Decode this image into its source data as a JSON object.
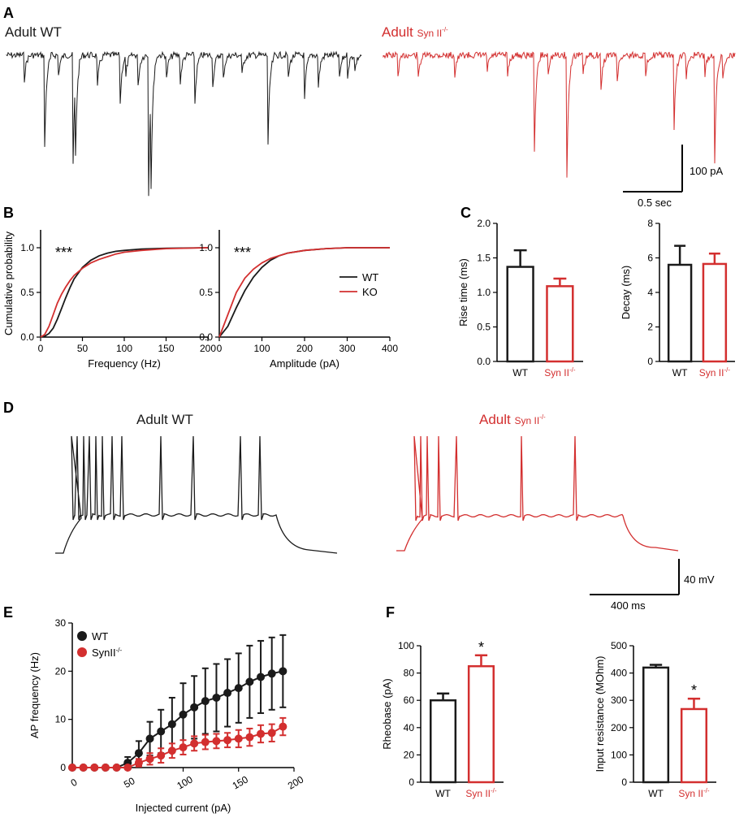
{
  "colors": {
    "wt": "#1a1a1a",
    "ko": "#d32f2f",
    "axis": "#000000"
  },
  "panels": {
    "A": "A",
    "B": "B",
    "C": "C",
    "D": "D",
    "E": "E",
    "F": "F"
  },
  "traces": {
    "wt_label": "Adult WT",
    "ko_label_main": "Adult",
    "ko_label_sub": "Syn II",
    "ko_label_sup": "-/-",
    "scale_a_current": "100 pA",
    "scale_a_time": "0.5 sec",
    "scale_d_voltage": "40 mV",
    "scale_d_time": "400 ms"
  },
  "chart_data": [
    {
      "id": "B1",
      "type": "line",
      "title": "",
      "xlabel": "Frequency (Hz)",
      "ylabel": "Cumulative probability",
      "xlim": [
        0,
        200
      ],
      "ylim": [
        0,
        1.2
      ],
      "xticks": [
        0,
        50,
        100,
        150,
        200
      ],
      "yticks": [
        0.0,
        0.5,
        1.0
      ],
      "annotation": "***",
      "series": [
        {
          "name": "WT",
          "x": [
            0,
            5,
            10,
            15,
            20,
            25,
            30,
            35,
            40,
            50,
            60,
            70,
            80,
            90,
            100,
            120,
            150,
            200
          ],
          "y": [
            0,
            0.01,
            0.04,
            0.1,
            0.2,
            0.32,
            0.44,
            0.55,
            0.65,
            0.78,
            0.86,
            0.91,
            0.94,
            0.96,
            0.97,
            0.985,
            0.995,
            1.0
          ]
        },
        {
          "name": "KO",
          "x": [
            0,
            5,
            10,
            15,
            20,
            25,
            30,
            35,
            40,
            50,
            60,
            70,
            80,
            90,
            100,
            120,
            150,
            200
          ],
          "y": [
            0,
            0.03,
            0.12,
            0.25,
            0.38,
            0.48,
            0.56,
            0.63,
            0.69,
            0.77,
            0.83,
            0.87,
            0.9,
            0.93,
            0.95,
            0.97,
            0.99,
            1.0
          ]
        }
      ]
    },
    {
      "id": "B2",
      "type": "line",
      "title": "",
      "xlabel": "Amplitude (pA)",
      "ylabel": "",
      "xlim": [
        0,
        400
      ],
      "ylim": [
        0,
        1.2
      ],
      "xticks": [
        0,
        100,
        200,
        300,
        400
      ],
      "yticks": [
        0.0,
        0.5,
        1.0
      ],
      "annotation": "***",
      "legend": [
        "WT",
        "KO"
      ],
      "series": [
        {
          "name": "WT",
          "x": [
            0,
            20,
            40,
            60,
            80,
            100,
            120,
            140,
            160,
            200,
            250,
            300,
            400
          ],
          "y": [
            0,
            0.12,
            0.33,
            0.52,
            0.67,
            0.78,
            0.86,
            0.91,
            0.94,
            0.97,
            0.99,
            1.0,
            1.0
          ]
        },
        {
          "name": "KO",
          "x": [
            0,
            20,
            40,
            60,
            80,
            100,
            120,
            140,
            160,
            200,
            250,
            300,
            400
          ],
          "y": [
            0,
            0.25,
            0.5,
            0.66,
            0.76,
            0.83,
            0.88,
            0.91,
            0.94,
            0.97,
            0.99,
            1.0,
            1.0
          ]
        }
      ]
    },
    {
      "id": "C1",
      "type": "bar",
      "title": "",
      "ylabel": "Rise time (ms)",
      "ylim": [
        0,
        2.0
      ],
      "yticks": [
        "0.0",
        "0.5",
        "1.0",
        "1.5",
        "2.0"
      ],
      "categories": [
        "WT",
        "Syn II"
      ],
      "category_sup": [
        "",
        "-/-"
      ],
      "values": [
        1.37,
        1.09
      ],
      "errors": [
        0.24,
        0.11
      ]
    },
    {
      "id": "C2",
      "type": "bar",
      "title": "",
      "ylabel": "Decay (ms)",
      "ylim": [
        0,
        8
      ],
      "yticks": [
        "0",
        "2",
        "4",
        "6",
        "8"
      ],
      "categories": [
        "WT",
        "Syn II"
      ],
      "category_sup": [
        "",
        "-/-"
      ],
      "values": [
        5.6,
        5.65
      ],
      "errors": [
        1.1,
        0.6
      ]
    },
    {
      "id": "E",
      "type": "line",
      "title": "",
      "xlabel": "Injected current (pA)",
      "ylabel": "AP frequency (Hz)",
      "xlim": [
        0,
        200
      ],
      "ylim": [
        0,
        30
      ],
      "xticks": [
        0,
        50,
        100,
        150,
        200
      ],
      "yticks": [
        0,
        10,
        20,
        30
      ],
      "x": [
        0,
        10,
        20,
        30,
        40,
        50,
        60,
        70,
        80,
        90,
        100,
        110,
        120,
        130,
        140,
        150,
        160,
        170,
        180,
        190
      ],
      "series": [
        {
          "name": "WT",
          "y": [
            0,
            0,
            0,
            0,
            0,
            1,
            3,
            6,
            7.5,
            9,
            11,
            12.5,
            13.8,
            14.5,
            15.5,
            16.5,
            17.8,
            18.8,
            19.5,
            20
          ],
          "err": [
            0,
            0,
            0,
            0,
            0,
            1.2,
            2.5,
            3.5,
            4.5,
            5.5,
            6.5,
            6.5,
            6.8,
            7,
            7,
            7.2,
            7.5,
            7.5,
            7.5,
            7.5
          ]
        },
        {
          "name": "SynII",
          "name_sup": "-/-",
          "y": [
            0,
            0,
            0,
            0,
            0,
            0,
            1,
            1.8,
            2.5,
            3.5,
            4.2,
            5,
            5.3,
            5.5,
            5.7,
            6,
            6.3,
            7,
            7.2,
            8.5
          ],
          "err": [
            0,
            0,
            0,
            0,
            0,
            0,
            0.8,
            1.2,
            1.5,
            1.5,
            1.5,
            1.5,
            1.5,
            1.5,
            1.5,
            1.8,
            1.8,
            1.8,
            1.8,
            1.8
          ]
        }
      ]
    },
    {
      "id": "F1",
      "type": "bar",
      "title": "",
      "ylabel": "Rheobase (pA)",
      "ylim": [
        0,
        100
      ],
      "yticks": [
        0,
        20,
        40,
        60,
        80,
        100
      ],
      "categories": [
        "WT",
        "Syn II"
      ],
      "category_sup": [
        "",
        "-/-"
      ],
      "values": [
        60,
        85
      ],
      "errors": [
        5,
        8
      ],
      "annotation": "*"
    },
    {
      "id": "F2",
      "type": "bar",
      "title": "",
      "ylabel": "Input resistance (MOhm)",
      "ylim": [
        0,
        500
      ],
      "yticks": [
        0,
        100,
        200,
        300,
        400,
        500
      ],
      "categories": [
        "WT",
        "Syn II"
      ],
      "category_sup": [
        "",
        "-/-"
      ],
      "values": [
        420,
        268
      ],
      "errors": [
        10,
        38
      ],
      "annotation": "*"
    }
  ]
}
